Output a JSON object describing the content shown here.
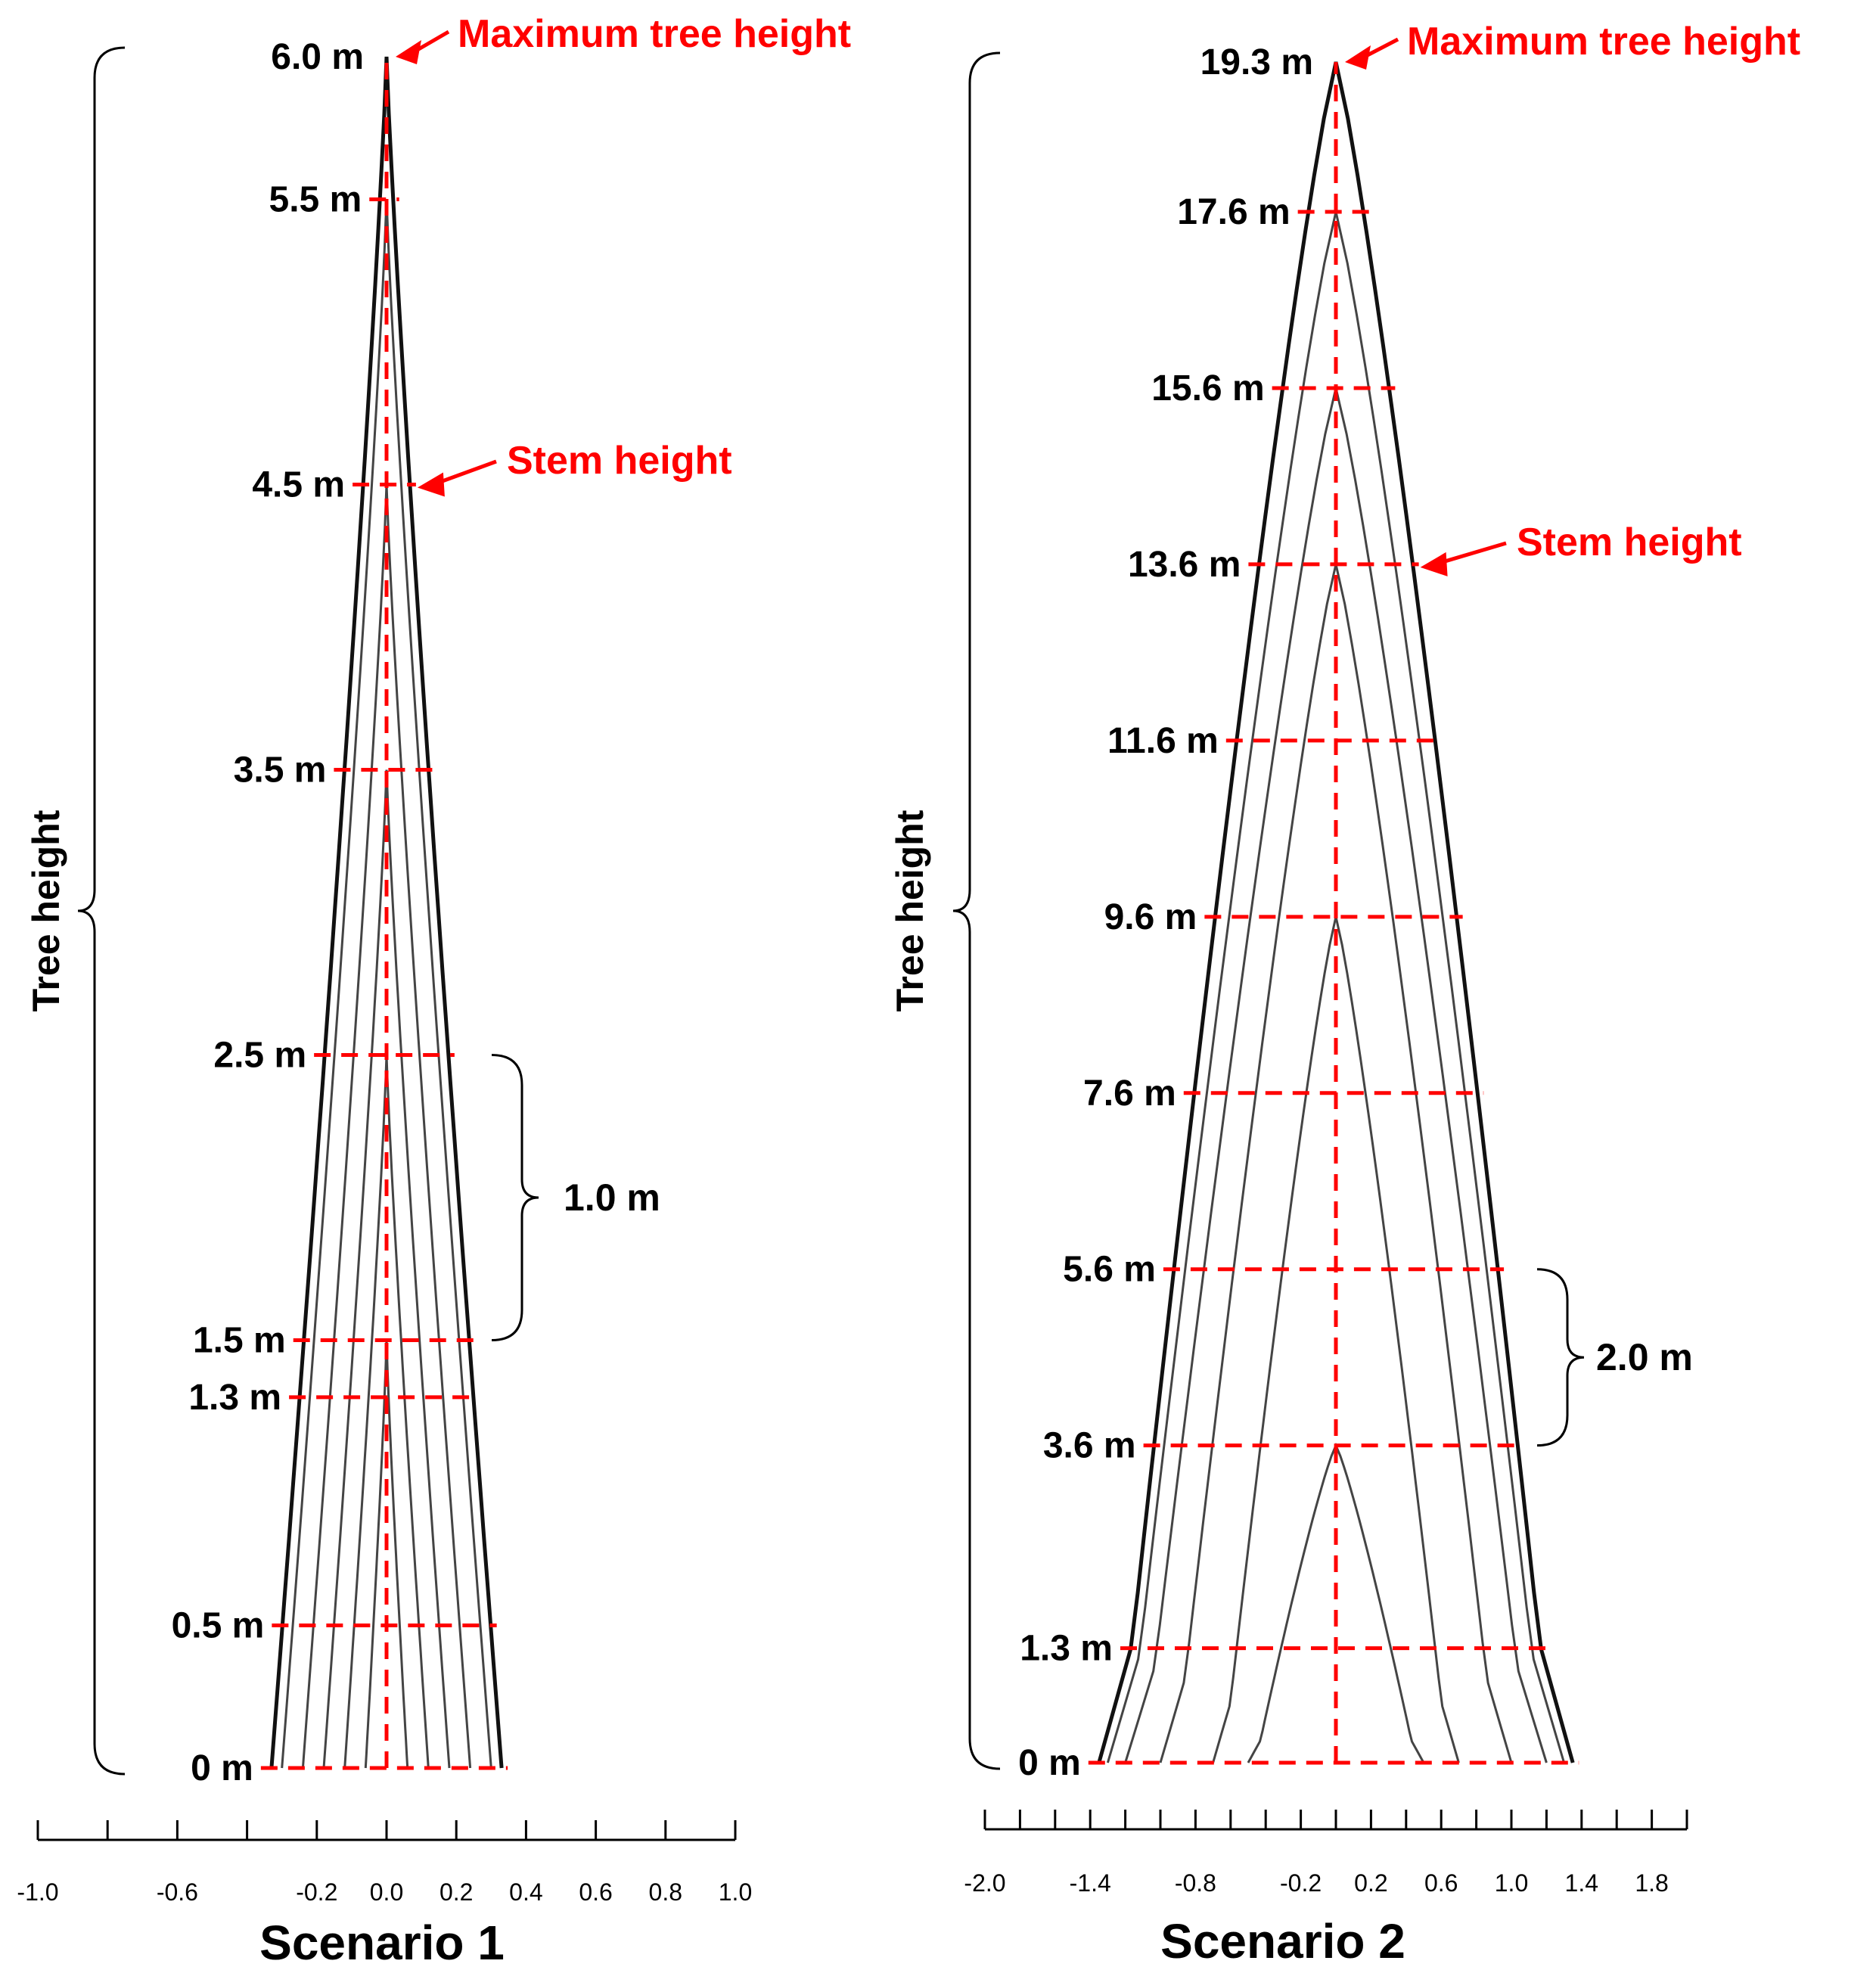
{
  "panels": [
    {
      "title": "Scenario 1",
      "bracket_label": "Tree height",
      "interval_label": "1.0 m",
      "max_label": "Maximum tree height",
      "stem_label": "Stem height",
      "height_labels": [
        "0 m",
        "0.5 m",
        "1.3 m",
        "1.5 m",
        "2.5 m",
        "3.5 m",
        "4.5 m",
        "5.5 m",
        "6.0 m"
      ],
      "heights": [
        0,
        0.5,
        1.3,
        1.5,
        2.5,
        3.5,
        4.5,
        5.5,
        6.0
      ],
      "max_height": 6.0,
      "stem_height": 4.5,
      "interval_from": 1.5,
      "interval_to": 2.5,
      "x_range": [
        -1.0,
        1.0
      ],
      "ticks": [
        -1.0,
        -0.8,
        -0.6,
        -0.4,
        -0.2,
        0.0,
        0.2,
        0.4,
        0.6,
        0.8,
        1.0
      ],
      "tick_labels": [
        "-1.0",
        "-0.6",
        "-0.2",
        "0.0",
        "0.2",
        "0.4",
        "0.6",
        "0.8",
        "1.0"
      ],
      "tick_label_values": [
        -1.0,
        -0.6,
        -0.2,
        0.0,
        0.2,
        0.4,
        0.6,
        0.8,
        1.0
      ],
      "stem_tops": [
        1.5,
        2.5,
        3.5,
        4.5,
        5.5,
        6.0
      ],
      "base_half_widths": [
        0.06,
        0.12,
        0.18,
        0.24,
        0.3,
        0.33
      ]
    },
    {
      "title": "Scenario 2",
      "bracket_label": "Tree height",
      "interval_label": "2.0 m",
      "max_label": "Maximum tree height",
      "stem_label": "Stem height",
      "height_labels": [
        "0 m",
        "1.3 m",
        "3.6 m",
        "5.6 m",
        "7.6 m",
        "9.6 m",
        "11.6 m",
        "13.6 m",
        "15.6 m",
        "17.6 m",
        "19.3 m"
      ],
      "heights": [
        0,
        1.3,
        3.6,
        5.6,
        7.6,
        9.6,
        11.6,
        13.6,
        15.6,
        17.6,
        19.3
      ],
      "max_height": 19.3,
      "stem_height": 13.6,
      "interval_from": 3.6,
      "interval_to": 5.6,
      "x_range": [
        -2.0,
        2.0
      ],
      "ticks": [
        -2.0,
        -1.8,
        -1.6,
        -1.4,
        -1.2,
        -1.0,
        -0.8,
        -0.6,
        -0.4,
        -0.2,
        0.0,
        0.2,
        0.4,
        0.6,
        0.8,
        1.0,
        1.2,
        1.4,
        1.6,
        1.8,
        2.0
      ],
      "tick_labels": [
        "-2.0",
        "-1.4",
        "-0.8",
        "-0.2",
        "0.2",
        "0.6",
        "1.0",
        "1.4",
        "1.8"
      ],
      "tick_label_values": [
        -2.0,
        -1.4,
        -0.8,
        -0.2,
        0.2,
        0.6,
        1.0,
        1.4,
        1.8
      ],
      "stem_tops": [
        3.6,
        9.6,
        13.6,
        15.6,
        17.6,
        19.3
      ],
      "base_half_widths": [
        0.5,
        0.7,
        1.0,
        1.2,
        1.3,
        1.35
      ]
    }
  ],
  "colors": {
    "stem_outline": "#111111",
    "stem_inner": "#444444",
    "marker": "#ff0000",
    "axis": "#000000",
    "text": "#000000"
  }
}
